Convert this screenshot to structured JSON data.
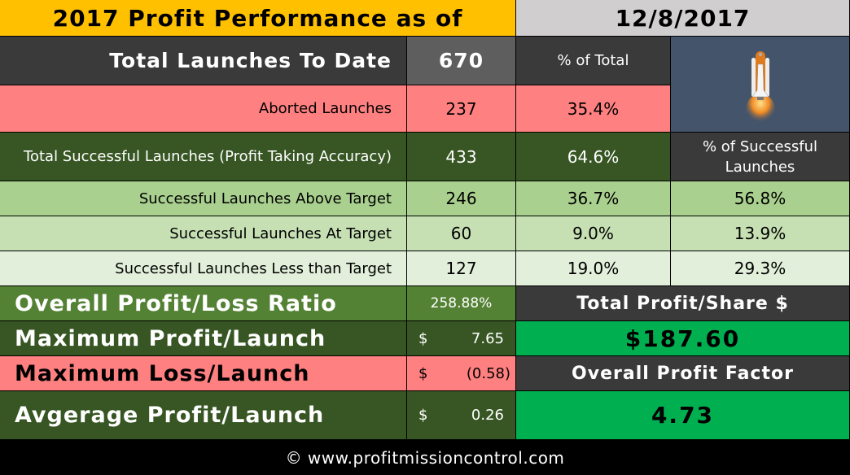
{
  "header": {
    "title": "2017 Profit Performance as of",
    "date": "12/8/2017"
  },
  "summary": {
    "total_label": "Total Launches To Date",
    "total_value": "670",
    "pct_total_label": "% of Total",
    "aborted_label": "Aborted Launches",
    "aborted_value": "237",
    "aborted_pct": "35.4%",
    "successful_label": "Total Successful Launches (Profit Taking Accuracy)",
    "successful_value": "433",
    "successful_pct": "64.6%",
    "pct_successful_label": "% of Successful Launches"
  },
  "breakdown": [
    {
      "label": "Successful Launches Above Target",
      "count": "246",
      "pct_total": "36.7%",
      "pct_success": "56.8%"
    },
    {
      "label": "Successful Launches At Target",
      "count": "60",
      "pct_total": "9.0%",
      "pct_success": "13.9%"
    },
    {
      "label": "Successful Launches Less than Target",
      "count": "127",
      "pct_total": "19.0%",
      "pct_success": "29.3%"
    }
  ],
  "metrics": {
    "pl_ratio_label": "Overall Profit/Loss Ratio",
    "pl_ratio_value": "258.88%",
    "max_profit_label": "Maximum Profit/Launch",
    "max_profit_currency": "$",
    "max_profit_value": "7.65",
    "max_loss_label": "Maximum Loss/Launch",
    "max_loss_currency": "$",
    "max_loss_value": "(0.58)",
    "avg_profit_label": "Avgerage Profit/Launch",
    "avg_profit_currency": "$",
    "avg_profit_value": "0.26",
    "total_profit_label": "Total Profit/Share $",
    "total_profit_value": "$187.60",
    "profit_factor_label": "Overall Profit Factor",
    "profit_factor_value": "4.73"
  },
  "footer": {
    "text": "© www.profitmissioncontrol.com"
  },
  "image": {
    "icon": "space-shuttle-icon"
  },
  "colors": {
    "title_bg": "#FFC000",
    "date_bg": "#D0CECE",
    "dark_gray": "#3A3A3A",
    "total_value_bg": "#595959",
    "pink": "#FF8080",
    "dark_green": "#375623",
    "green_mid": "#A9D08E",
    "green_light": "#C6E0B4",
    "green_pale": "#E2EFDA",
    "olive_green": "#548235",
    "bright_green": "#00B050",
    "image_bg": "#44546A"
  }
}
